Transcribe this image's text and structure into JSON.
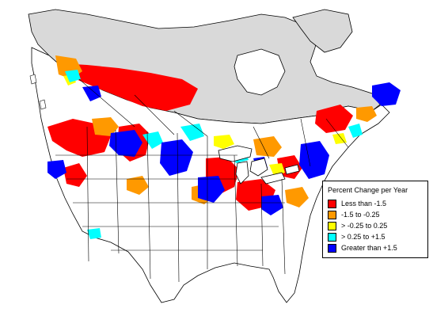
{
  "map": {
    "title": "",
    "no_data_color": "#ffffff",
    "outside_region_color": "#d9d9d9",
    "boundary_color": "#000000"
  },
  "legend": {
    "title": "Percent Change per Year",
    "items": [
      {
        "label": "Less than -1.5",
        "color": "#ff0000"
      },
      {
        "label": "-1.5 to -0.25",
        "color": "#ff9900"
      },
      {
        "label": "> -0.25 to 0.25",
        "color": "#ffff00"
      },
      {
        "label": "> 0.25 to +1.5",
        "color": "#00ffff"
      },
      {
        "label": "Greater than +1.5",
        "color": "#0000ff"
      }
    ]
  }
}
